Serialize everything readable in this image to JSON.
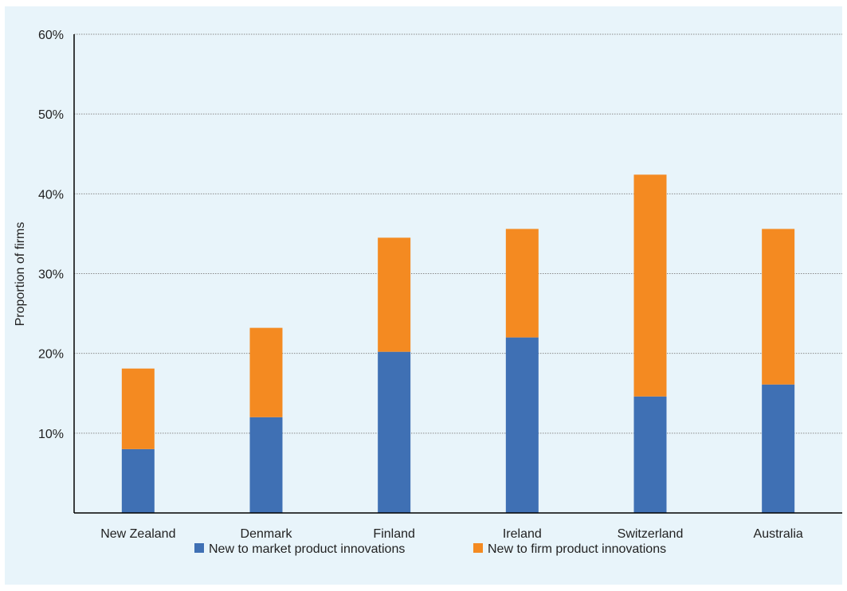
{
  "chart_data": {
    "type": "bar",
    "stacked": true,
    "title": "",
    "xlabel": "",
    "ylabel": "Proportion of firms",
    "ylim": [
      0,
      60
    ],
    "yticks": [
      10,
      20,
      30,
      40,
      50,
      60
    ],
    "ytick_labels": [
      "10%",
      "20%",
      "30%",
      "40%",
      "50%",
      "60%"
    ],
    "grid": "horizontal dotted",
    "legend_position": "bottom",
    "categories": [
      "New Zealand",
      "Denmark",
      "Finland",
      "Ireland",
      "Switzerland",
      "Australia"
    ],
    "series": [
      {
        "name": "New to market product innovations",
        "color": "#3f70b4",
        "values": [
          8,
          12,
          20.2,
          22,
          14.6,
          16.1
        ]
      },
      {
        "name": "New to firm product innovations",
        "color": "#f48a21",
        "values": [
          10.1,
          11.2,
          14.3,
          13.6,
          27.8,
          19.5
        ]
      }
    ]
  }
}
